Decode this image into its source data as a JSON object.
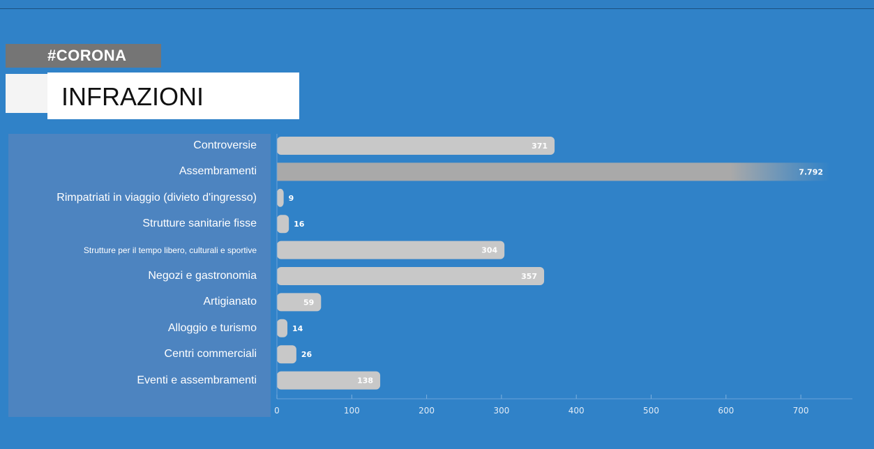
{
  "header": {
    "tag": "#CORONA",
    "title": "INFRAZIONI"
  },
  "colors": {
    "background": "#3082c8",
    "bar": "#c8c8c8",
    "bar_long": "#a9a9a9",
    "label_panel": "#4d84c0",
    "tag_bg": "#757575"
  },
  "chart_data": {
    "type": "bar",
    "orientation": "horizontal",
    "title": "INFRAZIONI",
    "categories": [
      "Controversie",
      "Assembramenti",
      "Rimpatriati in viaggio (divieto d'ingresso)",
      "Strutture sanitarie fisse",
      "Strutture per il tempo libero, culturali e sportive",
      "Negozi e gastronomia",
      "Artigianato",
      "Alloggio e turismo",
      "Centri commerciali",
      "Eventi e assembramenti"
    ],
    "values": [
      371,
      7792,
      9,
      16,
      304,
      357,
      59,
      14,
      26,
      138
    ],
    "value_labels": [
      "371",
      "7.792",
      "9",
      "16",
      "304",
      "357",
      "59",
      "14",
      "26",
      "138"
    ],
    "xlim": [
      0,
      760
    ],
    "xticks": [
      0,
      100,
      200,
      300,
      400,
      500,
      600,
      700
    ],
    "xtick_labels": [
      "0",
      "100",
      "200",
      "300",
      "400",
      "500",
      "600",
      "700"
    ],
    "truncated_bars": [
      "Assembramenti"
    ],
    "grid": false,
    "legend": "none"
  }
}
